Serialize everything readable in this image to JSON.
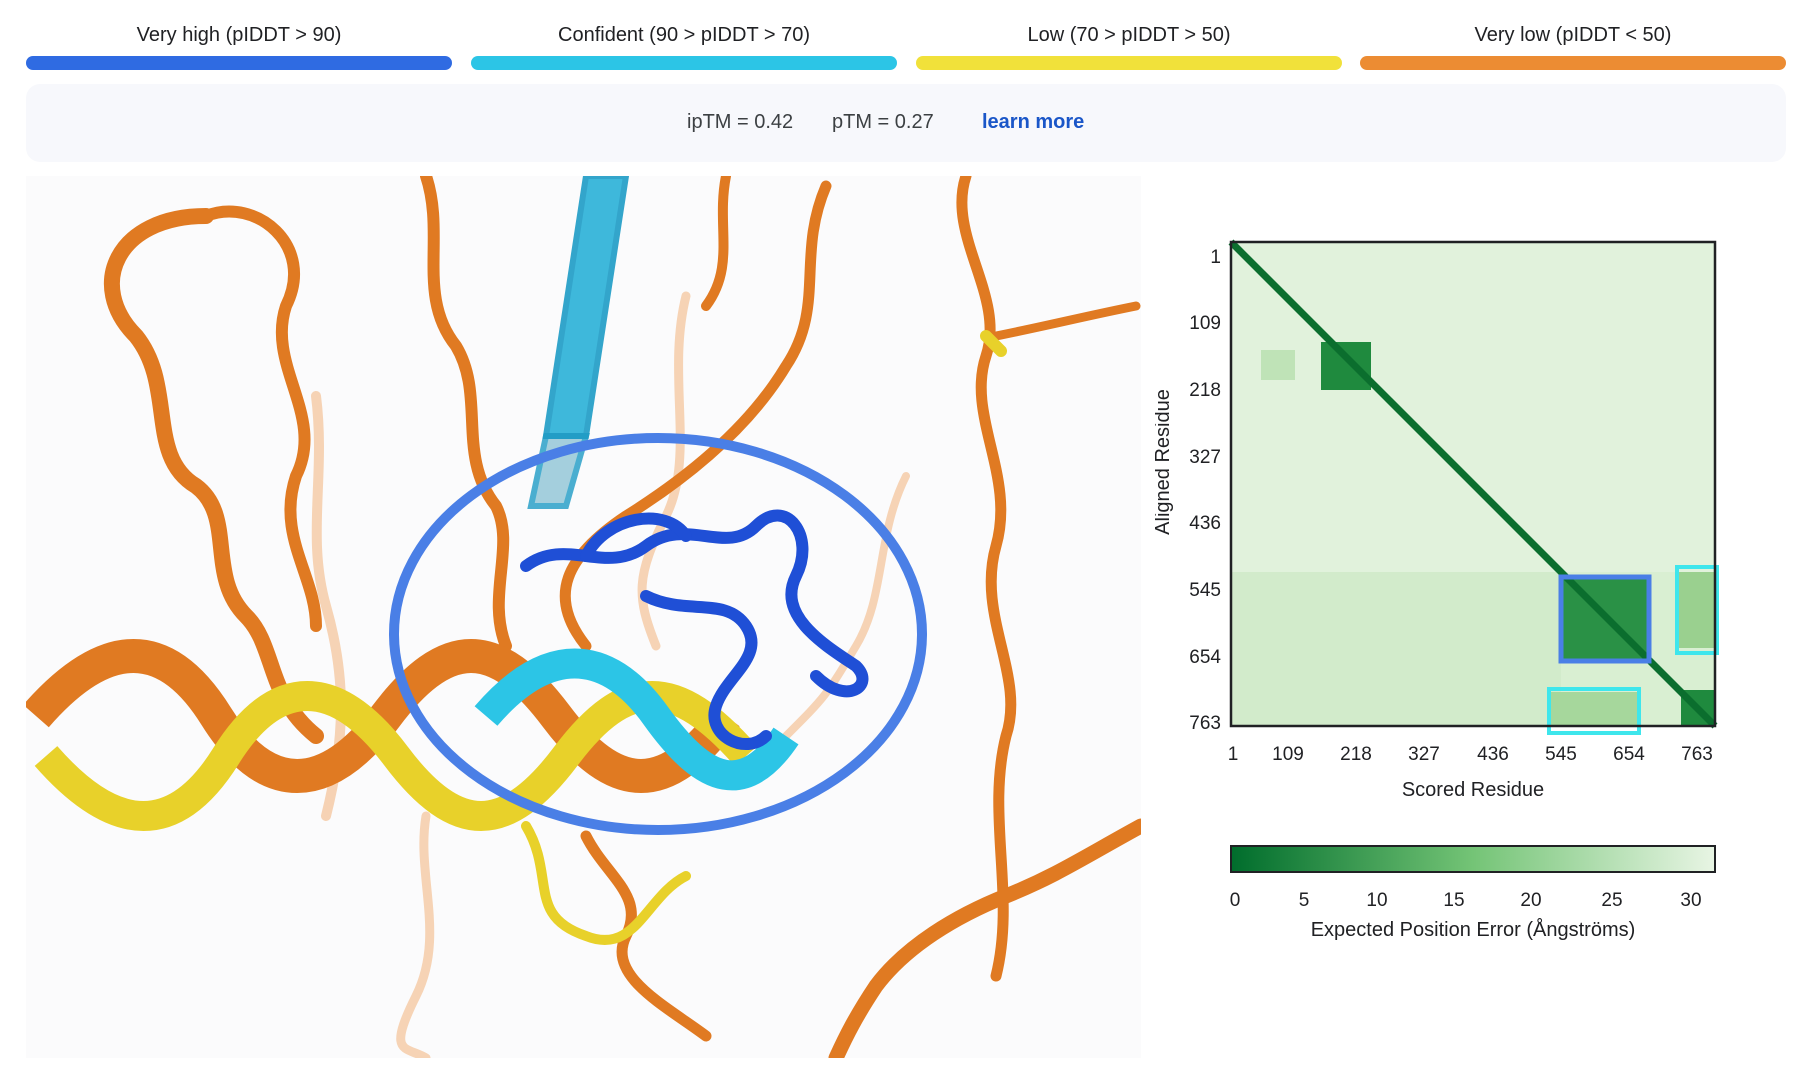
{
  "legend": {
    "items": [
      {
        "label": "Very high (pIDDT > 90)",
        "color": "#2f6be2"
      },
      {
        "label": "Confident (90 > pIDDT > 70)",
        "color": "#2cc5e6"
      },
      {
        "label": "Low (70 > pIDDT > 50)",
        "color": "#f1e13a"
      },
      {
        "label": "Very low (pIDDT < 50)",
        "color": "#ec8c33"
      }
    ]
  },
  "metrics": {
    "iptm": "ipTM = 0.42",
    "ptm": "pTM = 0.27",
    "learn_more": "learn more"
  },
  "viewer": {
    "description_icon": "protein-structure-3d-view",
    "highlight_color": "#4a7fe6"
  },
  "pae": {
    "y_title": "Aligned Residue",
    "x_title": "Scored Residue",
    "ticks": [
      "1",
      "109",
      "218",
      "327",
      "436",
      "545",
      "654",
      "763"
    ],
    "colorbar_ticks": [
      "0",
      "5",
      "10",
      "15",
      "20",
      "25",
      "30"
    ],
    "colorbar_title": "Expected Position Error (Ångströms)",
    "colors": {
      "dark": "#006d2c",
      "light": "#e8f5e4"
    },
    "highlight_blue": "#4a7fe6",
    "highlight_cyan": "#3ee6ec"
  }
}
